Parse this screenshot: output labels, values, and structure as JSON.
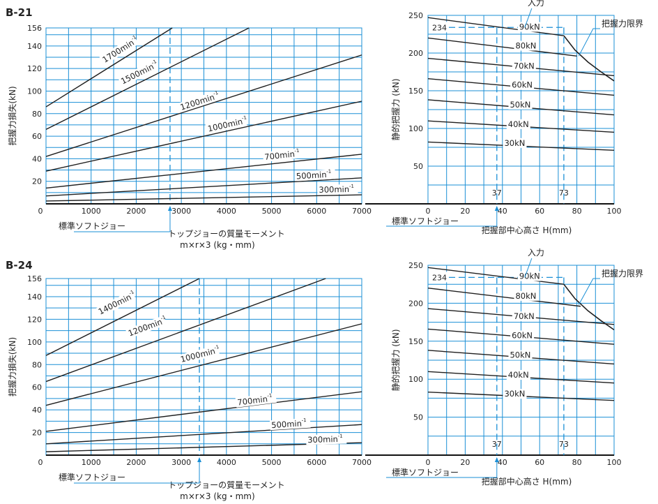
{
  "colors": {
    "grid": "#1a8fd6",
    "curve": "#1f1f1f",
    "marker": "#1a8fd6",
    "text": "#222222",
    "background": "#ffffff"
  },
  "panels": [
    {
      "title": "B-21",
      "loss_chart": {
        "type": "line",
        "ylabel": "把握力損失(kN)",
        "xlabel": [
          "トップジョーの質量モーメント",
          "m×r×3 (kg・mm)"
        ],
        "xlim": [
          0,
          7000
        ],
        "ylim": [
          0,
          156
        ],
        "x_ticks": [
          "0",
          "1000",
          "2000",
          "3000",
          "4000",
          "5000",
          "6000",
          "7000"
        ],
        "y_ticks": [
          "20",
          "40",
          "60",
          "80",
          "100",
          "120",
          "140",
          "156"
        ],
        "standard_jaw": {
          "x": 2750,
          "label": "標準ソフトジョー"
        },
        "series": [
          {
            "name": "1700min",
            "label_pos": {
              "x": 1300,
              "y": 125
            },
            "points": [
              [
                0,
                86
              ],
              [
                2800,
                156
              ]
            ]
          },
          {
            "name": "1500min",
            "label_pos": {
              "x": 1700,
              "y": 106
            },
            "points": [
              [
                0,
                66
              ],
              [
                4500,
                156
              ]
            ]
          },
          {
            "name": "1200min",
            "label_pos": {
              "x": 3000,
              "y": 83
            },
            "points": [
              [
                0,
                42
              ],
              [
                7000,
                132
              ]
            ]
          },
          {
            "name": "1000min",
            "label_pos": {
              "x": 3600,
              "y": 64
            },
            "points": [
              [
                0,
                29
              ],
              [
                7000,
                91
              ]
            ]
          },
          {
            "name": "700min",
            "label_pos": {
              "x": 4850,
              "y": 39
            },
            "points": [
              [
                0,
                14
              ],
              [
                7000,
                44
              ]
            ]
          },
          {
            "name": "500min",
            "label_pos": {
              "x": 5550,
              "y": 22
            },
            "points": [
              [
                0,
                7
              ],
              [
                7000,
                23
              ]
            ]
          },
          {
            "name": "300min",
            "label_pos": {
              "x": 6050,
              "y": 10
            },
            "points": [
              [
                0,
                2.5
              ],
              [
                7000,
                8
              ]
            ]
          }
        ]
      },
      "force_chart": {
        "type": "line",
        "ylabel": "静的把握力 (kN)",
        "xlabel": "把握部中心高さ H(mm)",
        "xlim": [
          0,
          100
        ],
        "ylim": [
          0,
          250
        ],
        "x_ticks": [
          "0",
          "20",
          "40",
          "60",
          "80",
          "100"
        ],
        "y_ticks": [
          "50",
          "100",
          "150",
          "200",
          "250"
        ],
        "standard_jaw": {
          "x": 37,
          "label": "標準ソフトジョー"
        },
        "marker_x_labels": [
          {
            "x": 37,
            "text": "37"
          },
          {
            "x": 73,
            "text": "73"
          }
        ],
        "ref_line": {
          "x2": 73,
          "y": 234,
          "label": "234"
        },
        "input_label": "入力",
        "limit_label": "把握力限界",
        "limit_curve": [
          [
            73,
            223
          ],
          [
            79,
            204
          ],
          [
            86,
            188
          ],
          [
            93,
            175
          ],
          [
            100,
            163
          ]
        ],
        "series": [
          {
            "name": "90kN",
            "label_pos": {
              "x": 49,
              "y": 231
            },
            "points": [
              [
                0,
                247
              ],
              [
                73,
                223
              ]
            ]
          },
          {
            "name": "80kN",
            "label_pos": {
              "x": 47,
              "y": 206
            },
            "points": [
              [
                0,
                220
              ],
              [
                80,
                196
              ]
            ]
          },
          {
            "name": "70kN",
            "label_pos": {
              "x": 46,
              "y": 179
            },
            "points": [
              [
                0,
                193
              ],
              [
                100,
                170
              ]
            ]
          },
          {
            "name": "60kN",
            "label_pos": {
              "x": 45,
              "y": 154
            },
            "points": [
              [
                0,
                166
              ],
              [
                100,
                144
              ]
            ]
          },
          {
            "name": "50kN",
            "label_pos": {
              "x": 44,
              "y": 128
            },
            "points": [
              [
                0,
                138
              ],
              [
                100,
                118
              ]
            ]
          },
          {
            "name": "40kN",
            "label_pos": {
              "x": 43,
              "y": 102
            },
            "points": [
              [
                0,
                110
              ],
              [
                100,
                95
              ]
            ]
          },
          {
            "name": "30kN",
            "label_pos": {
              "x": 41,
              "y": 77
            },
            "points": [
              [
                0,
                82
              ],
              [
                100,
                71
              ]
            ]
          }
        ]
      }
    },
    {
      "title": "B-24",
      "loss_chart": {
        "type": "line",
        "ylabel": "把握力損失(kN)",
        "xlabel": [
          "トップジョーの質量モーメント",
          "m×r×3 (kg・mm)"
        ],
        "xlim": [
          0,
          7000
        ],
        "ylim": [
          0,
          156
        ],
        "x_ticks": [
          "0",
          "1000",
          "2000",
          "3000",
          "4000",
          "5000",
          "6000",
          "7000"
        ],
        "y_ticks": [
          "20",
          "40",
          "60",
          "80",
          "100",
          "120",
          "140",
          "156"
        ],
        "standard_jaw": {
          "x": 3400,
          "label": "標準ソフトジョー"
        },
        "series": [
          {
            "name": "1400min",
            "label_pos": {
              "x": 1200,
              "y": 124
            },
            "points": [
              [
                0,
                88
              ],
              [
                3400,
                156
              ]
            ]
          },
          {
            "name": "1200min",
            "label_pos": {
              "x": 1850,
              "y": 105
            },
            "points": [
              [
                0,
                65
              ],
              [
                6200,
                156
              ]
            ]
          },
          {
            "name": "1000min",
            "label_pos": {
              "x": 3000,
              "y": 82
            },
            "points": [
              [
                0,
                44
              ],
              [
                7000,
                116
              ]
            ]
          },
          {
            "name": "700min",
            "label_pos": {
              "x": 4250,
              "y": 44
            },
            "points": [
              [
                0,
                21
              ],
              [
                7000,
                56
              ]
            ]
          },
          {
            "name": "500min",
            "label_pos": {
              "x": 5000,
              "y": 24
            },
            "points": [
              [
                0,
                10
              ],
              [
                7000,
                27
              ]
            ]
          },
          {
            "name": "300min",
            "label_pos": {
              "x": 5800,
              "y": 11
            },
            "points": [
              [
                0,
                3
              ],
              [
                7000,
                11
              ]
            ]
          }
        ]
      },
      "force_chart": {
        "type": "line",
        "ylabel": "静的把握力 (kN)",
        "xlabel": "把握部中心高さ H(mm)",
        "xlim": [
          0,
          100
        ],
        "ylim": [
          0,
          250
        ],
        "x_ticks": [
          "0",
          "20",
          "40",
          "60",
          "80",
          "100"
        ],
        "y_ticks": [
          "50",
          "100",
          "150",
          "200",
          "250"
        ],
        "standard_jaw": {
          "x": 37,
          "label": "標準ソフトジョー"
        },
        "marker_x_labels": [
          {
            "x": 37,
            "text": "37"
          },
          {
            "x": 73,
            "text": "73"
          }
        ],
        "ref_line": {
          "x2": 73,
          "y": 234,
          "label": "234"
        },
        "input_label": "入力",
        "limit_label": "把握力限界",
        "limit_curve": [
          [
            73,
            225
          ],
          [
            79,
            206
          ],
          [
            86,
            190
          ],
          [
            93,
            177
          ],
          [
            100,
            165
          ]
        ],
        "series": [
          {
            "name": "90kN",
            "label_pos": {
              "x": 49,
              "y": 232
            },
            "points": [
              [
                0,
                247
              ],
              [
                73,
                225
              ]
            ]
          },
          {
            "name": "80kN",
            "label_pos": {
              "x": 47,
              "y": 206
            },
            "points": [
              [
                0,
                220
              ],
              [
                82,
                196
              ]
            ]
          },
          {
            "name": "70kN",
            "label_pos": {
              "x": 46,
              "y": 179
            },
            "points": [
              [
                0,
                193
              ],
              [
                100,
                172
              ]
            ]
          },
          {
            "name": "60kN",
            "label_pos": {
              "x": 45,
              "y": 154
            },
            "points": [
              [
                0,
                166
              ],
              [
                100,
                146
              ]
            ]
          },
          {
            "name": "50kN",
            "label_pos": {
              "x": 44,
              "y": 128
            },
            "points": [
              [
                0,
                138
              ],
              [
                100,
                120
              ]
            ]
          },
          {
            "name": "40kN",
            "label_pos": {
              "x": 43,
              "y": 102
            },
            "points": [
              [
                0,
                110
              ],
              [
                100,
                95
              ]
            ]
          },
          {
            "name": "30kN",
            "label_pos": {
              "x": 41,
              "y": 77
            },
            "points": [
              [
                0,
                83
              ],
              [
                100,
                72
              ]
            ]
          }
        ]
      }
    }
  ],
  "chart_data": [
    {
      "type": "line",
      "title": "B-21",
      "ylabel": "把握力損失(kN)",
      "xlabel": "トップジョーの質量モーメント m×r×3 (kg・mm)",
      "xlim": [
        0,
        7000
      ],
      "ylim": [
        0,
        156
      ],
      "grid": true,
      "series": [
        {
          "name": "1700min",
          "x": [
            0,
            2800
          ],
          "y": [
            86,
            156
          ]
        },
        {
          "name": "1500min",
          "x": [
            0,
            4500
          ],
          "y": [
            66,
            156
          ]
        },
        {
          "name": "1200min",
          "x": [
            0,
            7000
          ],
          "y": [
            42,
            132
          ]
        },
        {
          "name": "1000min",
          "x": [
            0,
            7000
          ],
          "y": [
            29,
            91
          ]
        },
        {
          "name": "700min",
          "x": [
            0,
            7000
          ],
          "y": [
            14,
            44
          ]
        },
        {
          "name": "500min",
          "x": [
            0,
            7000
          ],
          "y": [
            7,
            23
          ]
        },
        {
          "name": "300min",
          "x": [
            0,
            7000
          ],
          "y": [
            2.5,
            8
          ]
        }
      ]
    },
    {
      "type": "line",
      "title": "B-21",
      "ylabel": "静的把握力 (kN)",
      "xlabel": "把握部中心高さ H(mm)",
      "xlim": [
        0,
        100
      ],
      "ylim": [
        0,
        250
      ],
      "grid": true,
      "series": [
        {
          "name": "90kN",
          "x": [
            0,
            73
          ],
          "y": [
            247,
            223
          ]
        },
        {
          "name": "80kN",
          "x": [
            0,
            80
          ],
          "y": [
            220,
            196
          ]
        },
        {
          "name": "70kN",
          "x": [
            0,
            100
          ],
          "y": [
            193,
            170
          ]
        },
        {
          "name": "60kN",
          "x": [
            0,
            100
          ],
          "y": [
            166,
            144
          ]
        },
        {
          "name": "50kN",
          "x": [
            0,
            100
          ],
          "y": [
            138,
            118
          ]
        },
        {
          "name": "40kN",
          "x": [
            0,
            100
          ],
          "y": [
            110,
            95
          ]
        },
        {
          "name": "30kN",
          "x": [
            0,
            100
          ],
          "y": [
            82,
            71
          ]
        },
        {
          "name": "把握力限界",
          "x": [
            73,
            79,
            86,
            93,
            100
          ],
          "y": [
            223,
            204,
            188,
            175,
            163
          ]
        }
      ]
    },
    {
      "type": "line",
      "title": "B-24",
      "ylabel": "把握力損失(kN)",
      "xlabel": "トップジョーの質量モーメント m×r×3 (kg・mm)",
      "xlim": [
        0,
        7000
      ],
      "ylim": [
        0,
        156
      ],
      "grid": true,
      "series": [
        {
          "name": "1400min",
          "x": [
            0,
            3400
          ],
          "y": [
            88,
            156
          ]
        },
        {
          "name": "1200min",
          "x": [
            0,
            6200
          ],
          "y": [
            65,
            156
          ]
        },
        {
          "name": "1000min",
          "x": [
            0,
            7000
          ],
          "y": [
            44,
            116
          ]
        },
        {
          "name": "700min",
          "x": [
            0,
            7000
          ],
          "y": [
            21,
            56
          ]
        },
        {
          "name": "500min",
          "x": [
            0,
            7000
          ],
          "y": [
            10,
            27
          ]
        },
        {
          "name": "300min",
          "x": [
            0,
            7000
          ],
          "y": [
            3,
            11
          ]
        }
      ]
    },
    {
      "type": "line",
      "title": "B-24",
      "ylabel": "静的把握力 (kN)",
      "xlabel": "把握部中心高さ H(mm)",
      "xlim": [
        0,
        100
      ],
      "ylim": [
        0,
        250
      ],
      "grid": true,
      "series": [
        {
          "name": "90kN",
          "x": [
            0,
            73
          ],
          "y": [
            247,
            225
          ]
        },
        {
          "name": "80kN",
          "x": [
            0,
            82
          ],
          "y": [
            220,
            196
          ]
        },
        {
          "name": "70kN",
          "x": [
            0,
            100
          ],
          "y": [
            193,
            172
          ]
        },
        {
          "name": "60kN",
          "x": [
            0,
            100
          ],
          "y": [
            166,
            146
          ]
        },
        {
          "name": "50kN",
          "x": [
            0,
            100
          ],
          "y": [
            138,
            120
          ]
        },
        {
          "name": "40kN",
          "x": [
            0,
            100
          ],
          "y": [
            110,
            95
          ]
        },
        {
          "name": "30kN",
          "x": [
            0,
            100
          ],
          "y": [
            83,
            72
          ]
        },
        {
          "name": "把握力限界",
          "x": [
            73,
            79,
            86,
            93,
            100
          ],
          "y": [
            225,
            206,
            190,
            177,
            165
          ]
        }
      ]
    }
  ]
}
